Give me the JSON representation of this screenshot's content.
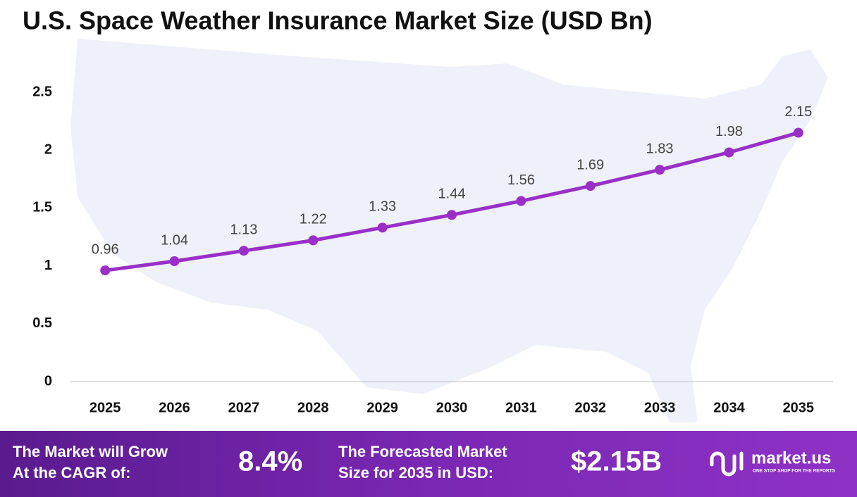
{
  "chart_data": {
    "type": "line",
    "title": "U.S. Space Weather Insurance Market Size (USD Bn)",
    "categories": [
      "2025",
      "2026",
      "2027",
      "2028",
      "2029",
      "2030",
      "2031",
      "2032",
      "2033",
      "2034",
      "2035"
    ],
    "values": [
      0.96,
      1.04,
      1.13,
      1.22,
      1.33,
      1.44,
      1.56,
      1.69,
      1.83,
      1.98,
      2.15
    ],
    "color": "#9a2fc8",
    "ylim": [
      0,
      2.5
    ],
    "yticks": [
      0,
      0.5,
      1,
      1.5,
      2,
      2.5
    ],
    "grid": false
  },
  "footer": {
    "cagr_label": [
      "The Market will Grow",
      "At the CAGR of:"
    ],
    "cagr_value": "8.4%",
    "forecast_label": [
      "The Forecasted Market",
      "Size for 2035 in USD:"
    ],
    "forecast_value": "$2.15B",
    "logo": "market.us",
    "tagline": "ONE STOP SHOP FOR THE REPORTS"
  }
}
